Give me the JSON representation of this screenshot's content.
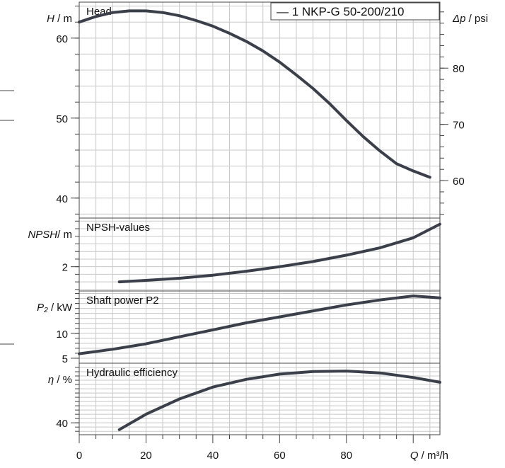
{
  "legend": {
    "label": "— 1 NKP-G 50-200/210"
  },
  "x_axis": {
    "var": "Q",
    "unit": " / m³/h",
    "ticks": [
      0,
      20,
      40,
      60,
      80
    ]
  },
  "colors": {
    "curve": "#3a3f4a",
    "grid": "#c8c8c8",
    "frame": "#444444"
  },
  "chart_data": [
    {
      "type": "line",
      "title": "Head",
      "ylabel_var": "H",
      "ylabel_unit": " / m",
      "y2label_var": "Δp",
      "y2label_unit": " / psi",
      "xlim": [
        0,
        108
      ],
      "ylim": [
        37.5,
        64.5
      ],
      "yticks": [
        40,
        50,
        60
      ],
      "y2ticks": [
        60,
        70,
        80
      ],
      "x": [
        0,
        5,
        10,
        15,
        20,
        25,
        30,
        35,
        40,
        45,
        50,
        55,
        60,
        65,
        70,
        75,
        80,
        85,
        90,
        95,
        100,
        105
      ],
      "y": [
        62.0,
        62.7,
        63.2,
        63.4,
        63.4,
        63.2,
        62.8,
        62.2,
        61.5,
        60.6,
        59.6,
        58.4,
        57.0,
        55.4,
        53.7,
        51.8,
        49.7,
        47.7,
        45.9,
        44.3,
        43.4,
        42.6
      ]
    },
    {
      "type": "line",
      "title": "NPSH-values",
      "ylabel_var": "NPSH",
      "ylabel_unit": "/ m",
      "xlim": [
        0,
        108
      ],
      "ylim": [
        1.2,
        3.6
      ],
      "yticks": [
        2
      ],
      "x": [
        12,
        20,
        30,
        40,
        50,
        60,
        70,
        80,
        90,
        100,
        108
      ],
      "y": [
        1.5,
        1.55,
        1.62,
        1.72,
        1.85,
        2.0,
        2.17,
        2.38,
        2.62,
        2.95,
        3.4
      ]
    },
    {
      "type": "line",
      "title": "Shaft power P2",
      "ylabel_var": "P₂",
      "ylabel_unit": " / kW",
      "xlim": [
        0,
        108
      ],
      "ylim": [
        4,
        18.5
      ],
      "yticks": [
        5,
        10
      ],
      "x": [
        0,
        10,
        20,
        30,
        40,
        50,
        60,
        70,
        80,
        90,
        100,
        108
      ],
      "y": [
        5.9,
        6.8,
        7.9,
        9.3,
        10.7,
        12.1,
        13.3,
        14.5,
        15.7,
        16.7,
        17.5,
        17.1
      ]
    },
    {
      "type": "line",
      "title": "Hydraulic efficiency",
      "ylabel_var": "η",
      "ylabel_unit": " / %",
      "xlim": [
        0,
        108
      ],
      "ylim": [
        33,
        75
      ],
      "yticks": [
        40
      ],
      "x": [
        12,
        20,
        30,
        40,
        50,
        60,
        70,
        80,
        90,
        100,
        108
      ],
      "y": [
        36,
        45,
        54,
        61,
        65.5,
        68.6,
        70.1,
        70.4,
        69.3,
        66.6,
        63.8
      ]
    }
  ]
}
